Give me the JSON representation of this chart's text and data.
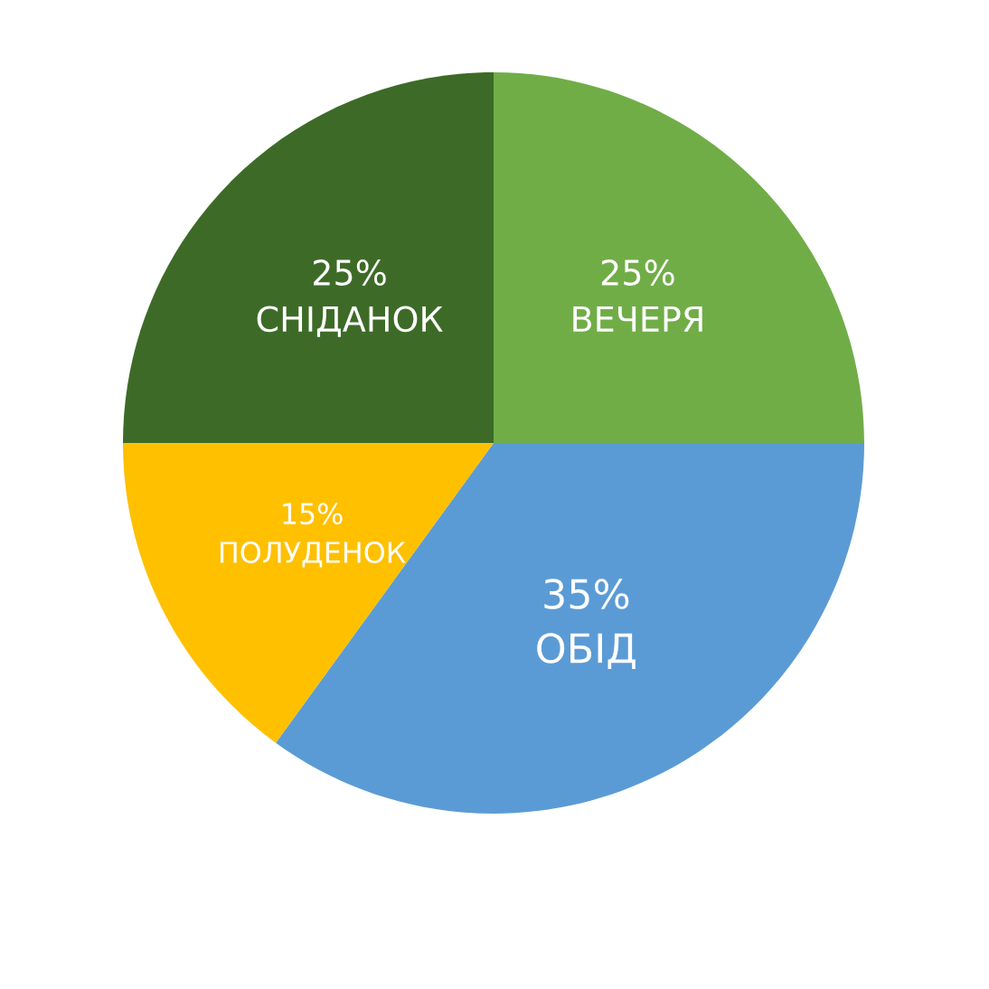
{
  "chart_data": {
    "type": "pie",
    "categories": [
      "ВЕЧЕРЯ",
      "ОБІД",
      "ПОЛУДЕНОК",
      "СНІДАНОК"
    ],
    "values": [
      25,
      35,
      15,
      25
    ],
    "value_labels": [
      "25%",
      "35%",
      "15%",
      "25%"
    ],
    "colors": [
      "#70ad47",
      "#5b9bd5",
      "#ffc000",
      "#3d6b27"
    ],
    "legend": false
  }
}
